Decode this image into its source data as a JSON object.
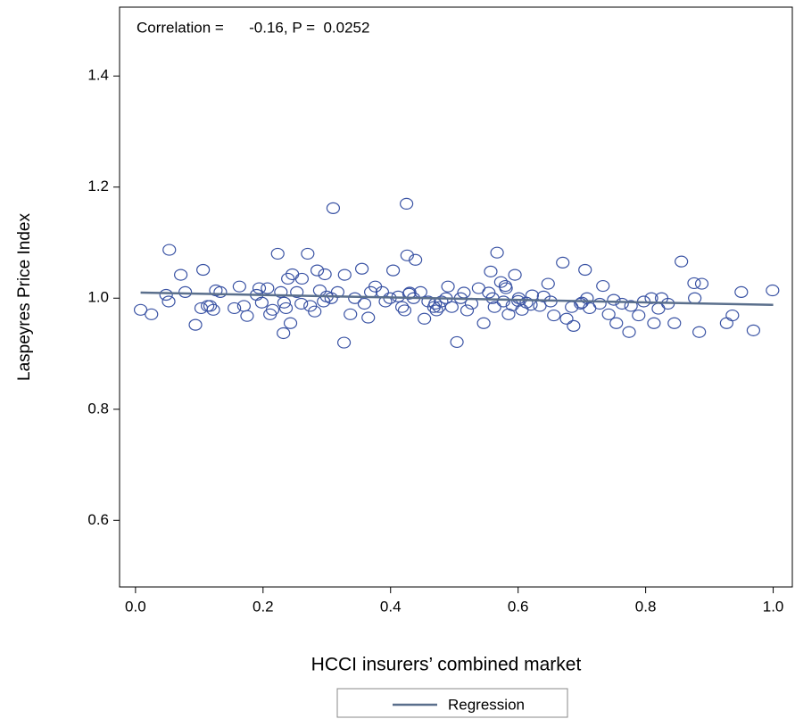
{
  "chart_data": {
    "type": "scatter",
    "annotation": "Correlation =      -0.16, P =  0.0252",
    "x_label": "HCCI insurers’ combined market",
    "y_label": "Laspeyres Price Index",
    "xlim": [
      -0.025,
      1.03
    ],
    "ylim": [
      0.48,
      1.524
    ],
    "xticks": [
      {
        "value": 0,
        "label": "0.0"
      },
      0.2,
      0.4,
      0.6,
      0.8,
      {
        "value": 1,
        "label": "1.0"
      }
    ],
    "yticks": [
      0.6,
      0.8,
      {
        "value": 1,
        "label": "1.0"
      },
      1.2,
      1.4
    ],
    "grid": false,
    "legend": "bottom",
    "series": [
      {
        "type": "scatter",
        "color": "#3a53a4",
        "x": [
          0.008,
          0.025,
          0.048,
          0.052,
          0.053,
          0.071,
          0.078,
          0.094,
          0.103,
          0.106,
          0.113,
          0.117,
          0.122,
          0.126,
          0.133,
          0.155,
          0.163,
          0.17,
          0.175,
          0.19,
          0.194,
          0.198,
          0.207,
          0.211,
          0.215,
          0.223,
          0.228,
          0.232,
          0.233,
          0.236,
          0.239,
          0.243,
          0.246,
          0.253,
          0.261,
          0.27,
          0.274,
          0.281,
          0.285,
          0.289,
          0.295,
          0.297,
          0.307,
          0.31,
          0.317,
          0.327,
          0.328,
          0.337,
          0.344,
          0.355,
          0.359,
          0.365,
          0.369,
          0.376,
          0.387,
          0.392,
          0.399,
          0.404,
          0.412,
          0.418,
          0.422,
          0.425,
          0.426,
          0.429,
          0.436,
          0.439,
          0.447,
          0.453,
          0.459,
          0.468,
          0.472,
          0.476,
          0.48,
          0.487,
          0.49,
          0.496,
          0.504,
          0.51,
          0.515,
          0.52,
          0.527,
          0.538,
          0.546,
          0.554,
          0.557,
          0.563,
          0.567,
          0.573,
          0.577,
          0.581,
          0.585,
          0.591,
          0.595,
          0.601,
          0.606,
          0.613,
          0.622,
          0.634,
          0.647,
          0.651,
          0.656,
          0.67,
          0.676,
          0.684,
          0.687,
          0.698,
          0.705,
          0.708,
          0.712,
          0.728,
          0.733,
          0.742,
          0.75,
          0.754,
          0.763,
          0.774,
          0.777,
          0.789,
          0.797,
          0.809,
          0.813,
          0.82,
          0.825,
          0.835,
          0.845,
          0.856,
          0.876,
          0.877,
          0.884,
          0.888,
          0.927,
          0.936,
          0.95,
          0.969,
          0.999,
          0.47,
          0.56,
          0.6,
          0.64,
          0.7,
          0.58,
          0.62,
          0.43,
          0.3,
          0.26
        ],
        "values": [
          0.979,
          0.971,
          1.006,
          0.994,
          1.087,
          1.042,
          1.011,
          0.952,
          0.982,
          1.051,
          0.986,
          0.986,
          0.979,
          1.014,
          1.011,
          0.982,
          1.021,
          0.986,
          0.968,
          1.006,
          1.018,
          0.992,
          1.018,
          0.971,
          0.979,
          1.08,
          1.011,
          0.937,
          0.992,
          0.982,
          1.035,
          0.955,
          1.043,
          1.011,
          1.035,
          1.08,
          0.986,
          0.976,
          1.05,
          1.014,
          0.994,
          1.043,
          1.0,
          1.162,
          1.011,
          0.92,
          1.042,
          0.971,
          1.0,
          1.053,
          0.99,
          0.965,
          1.011,
          1.021,
          1.011,
          0.994,
          1.0,
          1.05,
          1.003,
          0.984,
          0.978,
          1.17,
          1.077,
          1.008,
          1.0,
          1.069,
          1.011,
          0.963,
          0.994,
          0.984,
          0.978,
          0.984,
          0.994,
          1.0,
          1.021,
          0.984,
          0.921,
          1.0,
          1.01,
          0.978,
          0.99,
          1.018,
          0.955,
          1.01,
          1.048,
          0.984,
          1.082,
          1.029,
          0.994,
          1.018,
          0.971,
          0.987,
          1.042,
          1.0,
          0.979,
          0.992,
          1.005,
          0.986,
          1.026,
          0.994,
          0.969,
          1.064,
          0.963,
          0.984,
          0.95,
          0.99,
          1.051,
          1.0,
          0.982,
          0.99,
          1.022,
          0.971,
          0.997,
          0.955,
          0.99,
          0.939,
          0.986,
          0.969,
          0.994,
          1.0,
          0.955,
          0.981,
          1.0,
          0.99,
          0.955,
          1.066,
          1.027,
          1.0,
          0.939,
          1.026,
          0.955,
          0.969,
          1.011,
          0.942,
          1.014,
          0.99,
          1.0,
          0.995,
          1.003,
          0.992,
          1.022,
          0.988,
          1.01,
          1.003,
          0.99
        ]
      },
      {
        "type": "line",
        "name": "Regression",
        "color": "#5a6f8c",
        "x": [
          0.008,
          1.0
        ],
        "values": [
          1.01,
          0.988
        ]
      }
    ]
  }
}
